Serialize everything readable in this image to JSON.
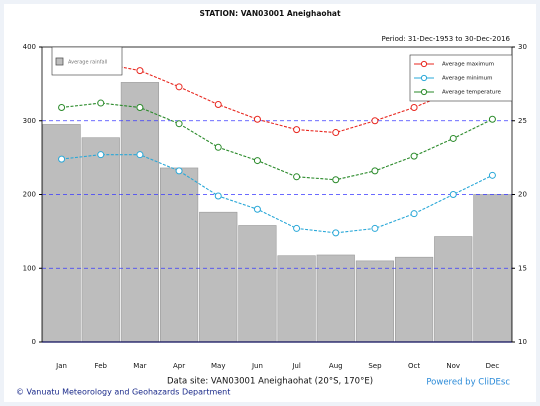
{
  "chart_data": {
    "type": "bar",
    "title": "STATION:  VAN03001 Aneighaohat",
    "subtitle": "Period:  31-Dec-1953  to  30-Dec-2016",
    "x_label": "Data site: VAN03001 Aneighaohat (20°S, 170°E)",
    "footer_left": "© Vanuatu Meteorology and Geohazards Department",
    "footer_right": "Powered by CliDEsc",
    "categories": [
      "Jan",
      "Feb",
      "Mar",
      "Apr",
      "May",
      "Jun",
      "Jul",
      "Aug",
      "Sep",
      "Oct",
      "Nov",
      "Dec"
    ],
    "series": [
      {
        "name": "Average rainfall",
        "type": "bar",
        "color": "#bdbdbd",
        "values": [
          295,
          277,
          352,
          236,
          176,
          158,
          117,
          118,
          110,
          115,
          143,
          200
        ]
      },
      {
        "name": "Average maximum",
        "type": "line",
        "axis": "y2",
        "color": "#e8271f",
        "values": [
          28.6,
          28.9,
          28.4,
          27.3,
          26.1,
          25.1,
          24.4,
          24.2,
          25.0,
          25.9,
          27.0,
          28.0
        ]
      },
      {
        "name": "Average minimum",
        "type": "line",
        "axis": "y2",
        "color": "#2aa8d8",
        "values": [
          22.4,
          22.7,
          22.7,
          21.6,
          19.9,
          19.0,
          17.7,
          17.4,
          17.7,
          18.7,
          20.0,
          21.3
        ]
      },
      {
        "name": "Average temperature",
        "type": "line",
        "axis": "y2",
        "color": "#2a8a2a",
        "values": [
          25.9,
          26.2,
          25.9,
          24.8,
          23.2,
          22.3,
          21.2,
          21.0,
          21.6,
          22.6,
          23.8,
          25.1
        ]
      }
    ],
    "ylim": [
      0,
      400
    ],
    "yticks": [
      0,
      100,
      200,
      300,
      400
    ],
    "y2lim": [
      10,
      30
    ],
    "y2ticks": [
      10,
      15,
      20,
      25,
      30
    ],
    "grid": true
  }
}
